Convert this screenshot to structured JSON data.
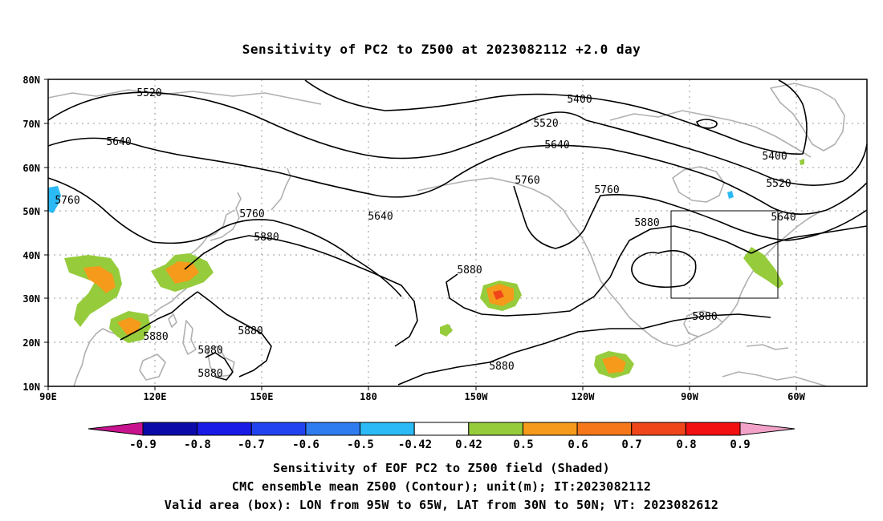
{
  "title": "Sensitivity of PC2 to Z500 at 2023082112 +2.0 day",
  "map": {
    "lat_range": [
      10,
      80
    ],
    "lon_range_east": [
      90,
      320
    ],
    "lat_ticks": [
      "80N",
      "70N",
      "60N",
      "50N",
      "40N",
      "30N",
      "20N",
      "10N"
    ],
    "lon_ticks": [
      "90E",
      "120E",
      "150E",
      "180",
      "150W",
      "120W",
      "90W",
      "60W"
    ],
    "grid": "dotted",
    "contour_labels": [
      "5520",
      "5640",
      "5760",
      "5760",
      "5880",
      "5880",
      "5880",
      "5880",
      "5400",
      "5520",
      "5640",
      "5760",
      "5640",
      "5760",
      "5880",
      "5880",
      "5880",
      "5400",
      "5520",
      "5640",
      "5880",
      "5880"
    ],
    "valid_box": {
      "lon_west": -95,
      "lon_east": -65,
      "lat_south": 30,
      "lat_north": 50
    }
  },
  "colorbar": {
    "labels": [
      "-0.9",
      "-0.8",
      "-0.7",
      "-0.6",
      "-0.5",
      "-0.42",
      "0.42",
      "0.5",
      "0.6",
      "0.7",
      "0.8",
      "0.9"
    ],
    "colors": [
      "#0b0aa8",
      "#1a1ae6",
      "#2244f0",
      "#2e7cf0",
      "#2bbaf5",
      "#ffffff",
      "#96cc3c",
      "#f59a1a",
      "#f5771a",
      "#f0451a",
      "#f21010"
    ],
    "low_end_color": "#c8138e",
    "high_end_color": "#f2a2c8"
  },
  "captions": [
    "Sensitivity of EOF PC2 to Z500 field (Shaded)",
    "CMC ensemble mean Z500 (Contour); unit(m); IT:2023082112",
    "Valid area (box): LON from 95W to 65W, LAT from 30N to 50N; VT: 2023082612"
  ],
  "colors": {
    "coast": "#b0b0b0",
    "contour": "#000000",
    "grid": "#9a9a9a"
  }
}
